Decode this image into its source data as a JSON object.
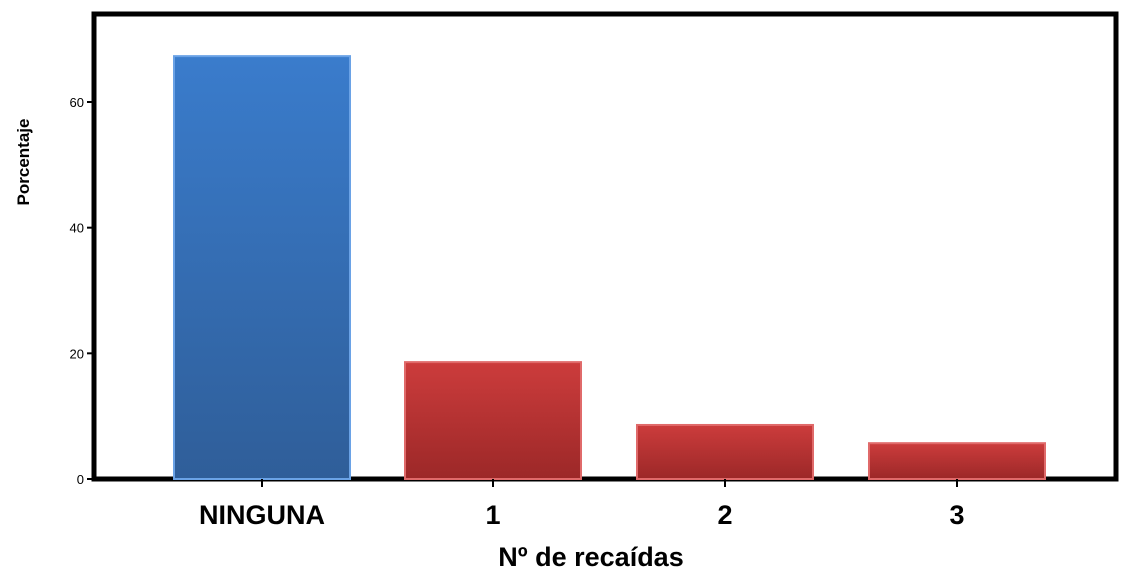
{
  "chart_data": {
    "type": "bar",
    "title": "",
    "xlabel": "Nº de recaídas",
    "ylabel": "Porcentaje",
    "categories": [
      "NINGUNA",
      "1",
      "2",
      "3"
    ],
    "values": [
      67.3,
      18.6,
      8.6,
      5.7
    ],
    "ylim": [
      0,
      72
    ],
    "yticks": [
      0,
      20,
      40,
      60
    ],
    "ytick_labels": [
      "0",
      "20",
      "40",
      "60"
    ],
    "grid": false,
    "legend": "none",
    "bar_colors": [
      "#3a7ccc",
      "#cc3c3c",
      "#cc3c3c",
      "#cc3c3c"
    ],
    "bar_colors_dark": [
      "#2f5e99",
      "#9c2828",
      "#9c2828",
      "#9c2828"
    ],
    "bar_edge_colors": [
      "#6aa2e6",
      "#e06a6a",
      "#e06a6a",
      "#e06a6a"
    ]
  }
}
